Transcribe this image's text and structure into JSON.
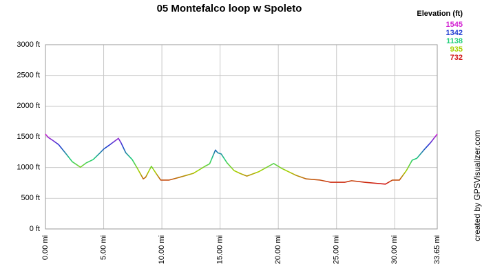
{
  "chart_data": {
    "type": "line",
    "title": "05 Montefalco loop w Spoleto",
    "credit": "created by GPSVisualizer.com",
    "legend": {
      "title": "Elevation (ft)",
      "stops": [
        {
          "value": 1545,
          "color": "#d21ed2"
        },
        {
          "value": 1342,
          "color": "#1e3cd2"
        },
        {
          "value": 1138,
          "color": "#1ecf78"
        },
        {
          "value": 935,
          "color": "#a8d200"
        },
        {
          "value": 732,
          "color": "#d21414"
        }
      ]
    },
    "x": [
      0,
      0.24,
      0.53,
      1.12,
      1.7,
      2.3,
      3.0,
      3.5,
      4.1,
      4.7,
      5.0,
      5.56,
      6.27,
      6.5,
      6.9,
      7.45,
      7.9,
      8.4,
      8.6,
      9.1,
      9.5,
      9.9,
      10.6,
      11.5,
      12.7,
      13.7,
      14.1,
      14.6,
      14.8,
      15.1,
      15.6,
      16.2,
      16.7,
      17.3,
      18.3,
      19.6,
      20.3,
      21.5,
      22.4,
      23.6,
      24.5,
      25.7,
      26.3,
      27.4,
      28.6,
      29.2,
      29.8,
      30.4,
      31.0,
      31.5,
      31.9,
      32.5,
      33.1,
      33.65
    ],
    "series": [
      {
        "name": "Elevation (ft)",
        "values": [
          1545,
          1490,
          1455,
          1375,
          1240,
          1095,
          1005,
          1075,
          1130,
          1240,
          1300,
          1375,
          1475,
          1400,
          1240,
          1130,
          985,
          815,
          840,
          1020,
          905,
          795,
          795,
          840,
          905,
          1020,
          1060,
          1285,
          1240,
          1220,
          1075,
          950,
          905,
          860,
          930,
          1065,
          985,
          875,
          815,
          795,
          760,
          760,
          785,
          760,
          740,
          730,
          795,
          795,
          950,
          1120,
          1150,
          1285,
          1410,
          1545
        ]
      }
    ],
    "xlim": [
      0,
      33.65
    ],
    "ylim": [
      0,
      3000
    ],
    "xticks": [
      {
        "value": 0,
        "label": "0.00 mi"
      },
      {
        "value": 5,
        "label": "5.00 mi"
      },
      {
        "value": 10,
        "label": "10.00 mi"
      },
      {
        "value": 15,
        "label": "15.00 mi"
      },
      {
        "value": 20,
        "label": "20.00 mi"
      },
      {
        "value": 25,
        "label": "25.00 mi"
      },
      {
        "value": 30,
        "label": "30.00 mi"
      },
      {
        "value": 33.65,
        "label": "33.65 mi"
      }
    ],
    "yticks": [
      {
        "value": 0,
        "label": "0 ft"
      },
      {
        "value": 500,
        "label": "500 ft"
      },
      {
        "value": 1000,
        "label": "1000 ft"
      },
      {
        "value": 1500,
        "label": "1500 ft"
      },
      {
        "value": 2000,
        "label": "2000 ft"
      },
      {
        "value": 2500,
        "label": "2500 ft"
      },
      {
        "value": 3000,
        "label": "3000 ft"
      }
    ],
    "grid": true
  }
}
